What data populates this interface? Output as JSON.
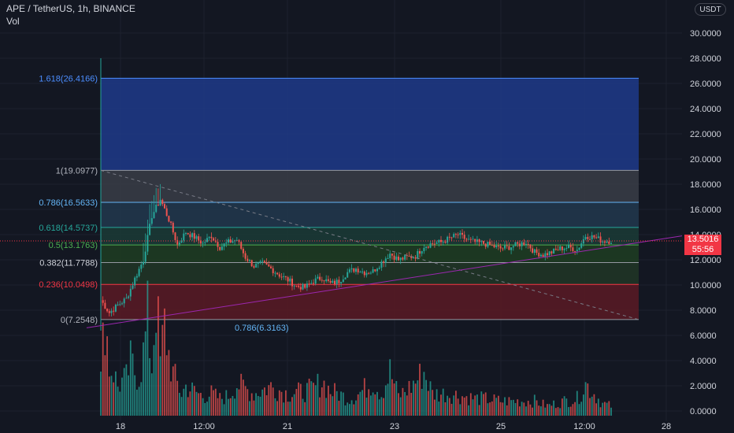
{
  "header": {
    "symbol_line": "APE / TetherUS, 1h, BINANCE",
    "volume_label": "Vol"
  },
  "currency_button": "USDT",
  "last_price": {
    "value": "13.5016",
    "countdown": "55:56",
    "color": "#f23645"
  },
  "colors": {
    "background": "#131722",
    "up": "#26a69a",
    "down": "#ef5350",
    "grid": "#1e222d",
    "axis_text": "#d1d4dc",
    "trendline": "#9c27b0",
    "dashed_line": "#787b86"
  },
  "fib_levels": [
    {
      "label": "1.618(26.4166)",
      "ratio": 1.618,
      "price": 26.4166,
      "line_color": "#4c8eff",
      "fill": "#1e3a8a",
      "label_color": "#4c8eff"
    },
    {
      "label": "1(19.0977)",
      "ratio": 1,
      "price": 19.0977,
      "line_color": "#9598a1",
      "fill": "#3a3d46",
      "label_color": "#b2b5be"
    },
    {
      "label": "0.786(16.5633)",
      "ratio": 0.786,
      "price": 16.5633,
      "line_color": "#64b5f6",
      "fill": "#22384d",
      "label_color": "#64b5f6"
    },
    {
      "label": "0.618(14.5737)",
      "ratio": 0.618,
      "price": 14.5737,
      "line_color": "#26a69a",
      "fill": "#1b3b36",
      "label_color": "#26a69a"
    },
    {
      "label": "0.5(13.1763)",
      "ratio": 0.5,
      "price": 13.1763,
      "line_color": "#4caf50",
      "fill": "#1f3d22",
      "label_color": "#4caf50"
    },
    {
      "label": "0.382(11.7788)",
      "ratio": 0.382,
      "price": 11.7788,
      "line_color": "#9598a1",
      "fill": "#213626",
      "label_color": "#d1d4dc"
    },
    {
      "label": "0.236(10.0498)",
      "ratio": 0.236,
      "price": 10.0498,
      "line_color": "#f23645",
      "fill": "#5a1a25",
      "label_color": "#f23645"
    },
    {
      "label": "0(7.2548)",
      "ratio": 0,
      "price": 7.2548,
      "line_color": "#9598a1",
      "fill": "",
      "label_color": "#b2b5be"
    }
  ],
  "fib_bottom_label": "0.786(6.3163)",
  "y_axis": {
    "ticks": [
      "30.0000",
      "28.0000",
      "26.0000",
      "24.0000",
      "22.0000",
      "20.0000",
      "18.0000",
      "16.0000",
      "14.0000",
      "12.0000",
      "10.0000",
      "8.0000",
      "6.0000",
      "4.0000",
      "2.0000",
      "0.0000"
    ],
    "min": 0,
    "max": 30
  },
  "x_axis": {
    "ticks": [
      "18",
      "12:00",
      "21",
      "23",
      "25",
      "12:00",
      "28"
    ]
  },
  "chart_data": {
    "type": "candlestick",
    "symbol": "APE / TetherUS",
    "interval": "1h",
    "exchange": "BINANCE",
    "close_path": [
      [
        0,
        8.8
      ],
      [
        4,
        7.8
      ],
      [
        8,
        8.4
      ],
      [
        12,
        8.9
      ],
      [
        16,
        10.5
      ],
      [
        20,
        12.0
      ],
      [
        24,
        15.5
      ],
      [
        28,
        16.8
      ],
      [
        32,
        15.2
      ],
      [
        36,
        13.2
      ],
      [
        40,
        14.2
      ],
      [
        44,
        13.8
      ],
      [
        48,
        13.3
      ],
      [
        52,
        13.9
      ],
      [
        56,
        13.0
      ],
      [
        60,
        13.4
      ],
      [
        64,
        13.6
      ],
      [
        68,
        12.2
      ],
      [
        72,
        11.5
      ],
      [
        76,
        11.7
      ],
      [
        80,
        11.3
      ],
      [
        84,
        10.8
      ],
      [
        88,
        10.4
      ],
      [
        92,
        9.9
      ],
      [
        96,
        9.8
      ],
      [
        100,
        10.3
      ],
      [
        104,
        10.6
      ],
      [
        108,
        10.1
      ],
      [
        112,
        10.3
      ],
      [
        116,
        11.0
      ],
      [
        120,
        11.3
      ],
      [
        124,
        11.0
      ],
      [
        128,
        11.1
      ],
      [
        132,
        11.8
      ],
      [
        136,
        12.5
      ],
      [
        140,
        12.0
      ],
      [
        144,
        12.2
      ],
      [
        148,
        12.3
      ],
      [
        152,
        13.1
      ],
      [
        156,
        13.3
      ],
      [
        160,
        13.4
      ],
      [
        164,
        13.7
      ],
      [
        168,
        14.0
      ],
      [
        172,
        13.6
      ],
      [
        176,
        13.4
      ],
      [
        180,
        13.3
      ],
      [
        184,
        13.1
      ],
      [
        188,
        12.9
      ],
      [
        192,
        13.0
      ],
      [
        196,
        13.2
      ],
      [
        200,
        13.4
      ],
      [
        204,
        12.6
      ],
      [
        208,
        12.4
      ],
      [
        212,
        12.6
      ],
      [
        216,
        12.9
      ],
      [
        220,
        13.0
      ],
      [
        224,
        12.8
      ],
      [
        228,
        13.9
      ],
      [
        232,
        13.8
      ],
      [
        236,
        13.5
      ],
      [
        240,
        13.5
      ]
    ],
    "volume_path": [
      [
        0,
        1.5
      ],
      [
        2,
        4.3
      ],
      [
        4,
        2.0
      ],
      [
        6,
        1.8
      ],
      [
        8,
        1.2
      ],
      [
        10,
        1.4
      ],
      [
        12,
        1.5
      ],
      [
        14,
        2.2
      ],
      [
        16,
        1.8
      ],
      [
        18,
        1.6
      ],
      [
        20,
        2.5
      ],
      [
        22,
        3.9
      ],
      [
        24,
        2.0
      ],
      [
        26,
        4.9
      ],
      [
        28,
        2.2
      ],
      [
        30,
        3.7
      ],
      [
        32,
        2.5
      ],
      [
        34,
        1.7
      ],
      [
        36,
        1.3
      ],
      [
        38,
        0.9
      ],
      [
        40,
        1.2
      ],
      [
        44,
        1.0
      ],
      [
        48,
        0.8
      ],
      [
        52,
        0.9
      ],
      [
        56,
        0.7
      ],
      [
        60,
        0.8
      ],
      [
        64,
        1.3
      ],
      [
        68,
        1.1
      ],
      [
        72,
        0.9
      ],
      [
        80,
        1.2
      ],
      [
        88,
        0.9
      ],
      [
        96,
        1.0
      ],
      [
        100,
        1.1
      ],
      [
        104,
        1.4
      ],
      [
        108,
        1.0
      ],
      [
        112,
        0.9
      ],
      [
        116,
        0.7
      ],
      [
        120,
        0.8
      ],
      [
        128,
        1.4
      ],
      [
        132,
        0.9
      ],
      [
        136,
        1.8
      ],
      [
        140,
        0.8
      ],
      [
        146,
        1.2
      ],
      [
        152,
        1.8
      ],
      [
        156,
        0.9
      ],
      [
        164,
        0.9
      ],
      [
        170,
        0.8
      ],
      [
        176,
        0.7
      ],
      [
        180,
        0.7
      ],
      [
        188,
        0.6
      ],
      [
        196,
        0.6
      ],
      [
        204,
        0.6
      ],
      [
        210,
        0.4
      ],
      [
        218,
        0.6
      ],
      [
        224,
        0.7
      ],
      [
        228,
        1.3
      ],
      [
        232,
        0.9
      ],
      [
        236,
        0.5
      ],
      [
        240,
        0.4
      ]
    ],
    "ylim": [
      0,
      30
    ],
    "xlim": [
      -12,
      276
    ]
  }
}
